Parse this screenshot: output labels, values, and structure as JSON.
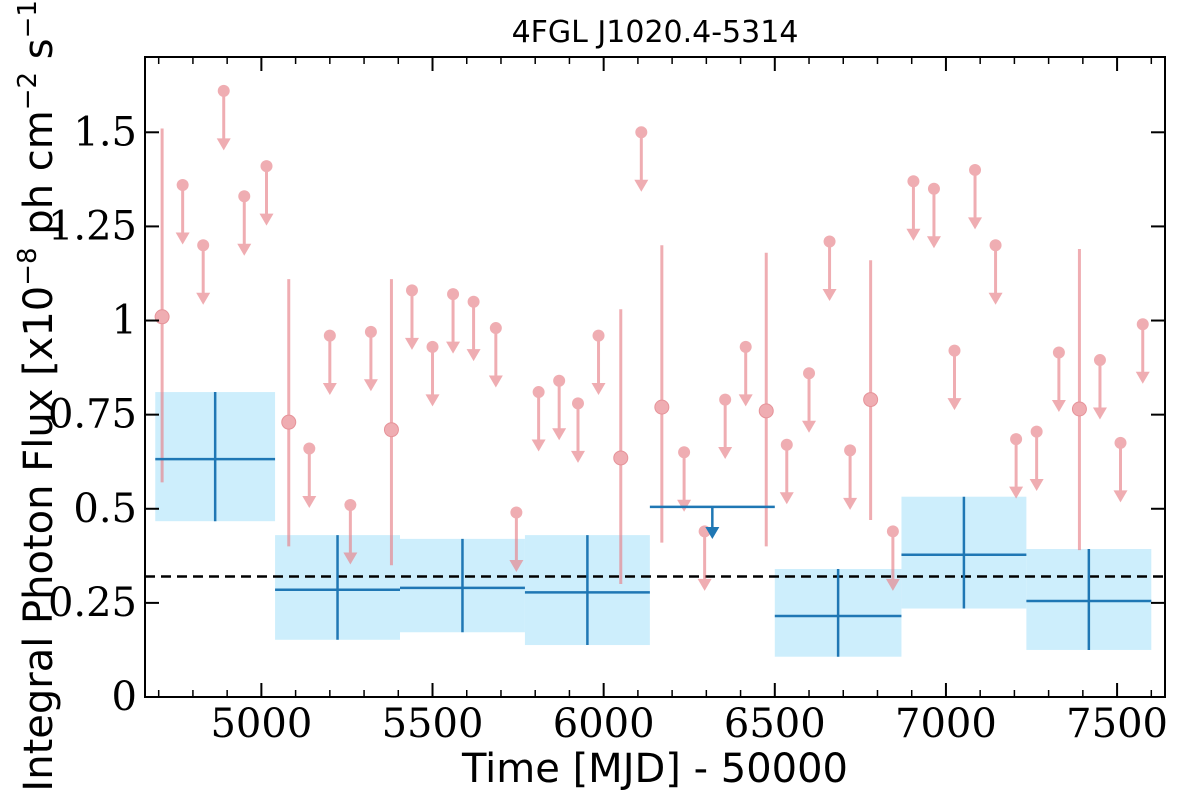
{
  "chart_data": {
    "type": "scatter",
    "title": "4FGL J1020.4-5314",
    "xlabel": "Time [MJD] - 50000",
    "ylabel": "Integral Photon Flux [x10",
    "ylabel_exp1": "−8",
    "ylabel_mid": " ph cm",
    "ylabel_exp2": "−2",
    "ylabel_mid2": " s",
    "ylabel_exp3": "−1",
    "ylabel_end": "]",
    "xlim": [
      4660,
      7640
    ],
    "ylim": [
      0,
      1.7
    ],
    "xticks": [
      {
        "value": 5000,
        "label": "5000"
      },
      {
        "value": 5500,
        "label": "5500"
      },
      {
        "value": 6000,
        "label": "6000"
      },
      {
        "value": 6500,
        "label": "6500"
      },
      {
        "value": 7000,
        "label": "7000"
      },
      {
        "value": 7500,
        "label": "7500"
      }
    ],
    "yticks": [
      {
        "value": 0,
        "label": "0"
      },
      {
        "value": 0.25,
        "label": "0.25"
      },
      {
        "value": 0.5,
        "label": "0.5"
      },
      {
        "value": 0.75,
        "label": "0.75"
      },
      {
        "value": 1.0,
        "label": "1"
      },
      {
        "value": 1.25,
        "label": "1.25"
      },
      {
        "value": 1.5,
        "label": "1.5"
      }
    ],
    "mean_flux": 0.32,
    "colors": {
      "short_points": "#e8828a",
      "long_bins": "#1f77b4",
      "long_bin_band": "#cdeefc",
      "mean_line": "#000000"
    },
    "short_bins_detections": [
      {
        "x": 4710,
        "y": 1.01,
        "ylo": 0.57,
        "yhi": 1.51
      },
      {
        "x": 5080,
        "y": 0.73,
        "ylo": 0.4,
        "yhi": 1.11
      },
      {
        "x": 5380,
        "y": 0.71,
        "ylo": 0.35,
        "yhi": 1.11
      },
      {
        "x": 6050,
        "y": 0.635,
        "ylo": 0.3,
        "yhi": 1.03
      },
      {
        "x": 6170,
        "y": 0.77,
        "ylo": 0.41,
        "yhi": 1.2
      },
      {
        "x": 6475,
        "y": 0.76,
        "ylo": 0.4,
        "yhi": 1.18
      },
      {
        "x": 6780,
        "y": 0.79,
        "ylo": 0.47,
        "yhi": 1.16
      },
      {
        "x": 7390,
        "y": 0.765,
        "ylo": 0.39,
        "yhi": 1.19
      }
    ],
    "short_bins_upper_limits": [
      {
        "x": 4770,
        "y": 1.36
      },
      {
        "x": 4830,
        "y": 1.2
      },
      {
        "x": 4890,
        "y": 1.61
      },
      {
        "x": 4950,
        "y": 1.33
      },
      {
        "x": 5015,
        "y": 1.41
      },
      {
        "x": 5140,
        "y": 0.66
      },
      {
        "x": 5200,
        "y": 0.96
      },
      {
        "x": 5260,
        "y": 0.51
      },
      {
        "x": 5320,
        "y": 0.97
      },
      {
        "x": 5440,
        "y": 1.08
      },
      {
        "x": 5500,
        "y": 0.93
      },
      {
        "x": 5560,
        "y": 1.07
      },
      {
        "x": 5620,
        "y": 1.05
      },
      {
        "x": 5685,
        "y": 0.98
      },
      {
        "x": 5745,
        "y": 0.49
      },
      {
        "x": 5810,
        "y": 0.81
      },
      {
        "x": 5870,
        "y": 0.84
      },
      {
        "x": 5925,
        "y": 0.78
      },
      {
        "x": 5985,
        "y": 0.96
      },
      {
        "x": 6110,
        "y": 1.5
      },
      {
        "x": 6235,
        "y": 0.65
      },
      {
        "x": 6295,
        "y": 0.44
      },
      {
        "x": 6355,
        "y": 0.79
      },
      {
        "x": 6415,
        "y": 0.93
      },
      {
        "x": 6535,
        "y": 0.67
      },
      {
        "x": 6600,
        "y": 0.86
      },
      {
        "x": 6660,
        "y": 1.21
      },
      {
        "x": 6720,
        "y": 0.655
      },
      {
        "x": 6845,
        "y": 0.44
      },
      {
        "x": 6905,
        "y": 1.37
      },
      {
        "x": 6965,
        "y": 1.35
      },
      {
        "x": 7025,
        "y": 0.92
      },
      {
        "x": 7085,
        "y": 1.4
      },
      {
        "x": 7145,
        "y": 1.2
      },
      {
        "x": 7205,
        "y": 0.685
      },
      {
        "x": 7265,
        "y": 0.705
      },
      {
        "x": 7330,
        "y": 0.915
      },
      {
        "x": 7450,
        "y": 0.895
      },
      {
        "x": 7510,
        "y": 0.675
      },
      {
        "x": 7575,
        "y": 0.99
      }
    ],
    "long_bins_detections": [
      {
        "x0": 4690,
        "x1": 5040,
        "y": 0.632,
        "ylo": 0.467,
        "yhi": 0.81
      },
      {
        "x0": 5040,
        "x1": 5405,
        "y": 0.285,
        "ylo": 0.152,
        "yhi": 0.43
      },
      {
        "x0": 5405,
        "x1": 5770,
        "y": 0.29,
        "ylo": 0.172,
        "yhi": 0.42
      },
      {
        "x0": 5770,
        "x1": 6135,
        "y": 0.278,
        "ylo": 0.138,
        "yhi": 0.43
      },
      {
        "x0": 6500,
        "x1": 6870,
        "y": 0.215,
        "ylo": 0.107,
        "yhi": 0.34
      },
      {
        "x0": 6870,
        "x1": 7235,
        "y": 0.378,
        "ylo": 0.235,
        "yhi": 0.532
      },
      {
        "x0": 7235,
        "x1": 7600,
        "y": 0.255,
        "ylo": 0.125,
        "yhi": 0.393
      }
    ],
    "long_bins_upper_limits": [
      {
        "x0": 6135,
        "x1": 6500,
        "y": 0.505
      }
    ]
  }
}
